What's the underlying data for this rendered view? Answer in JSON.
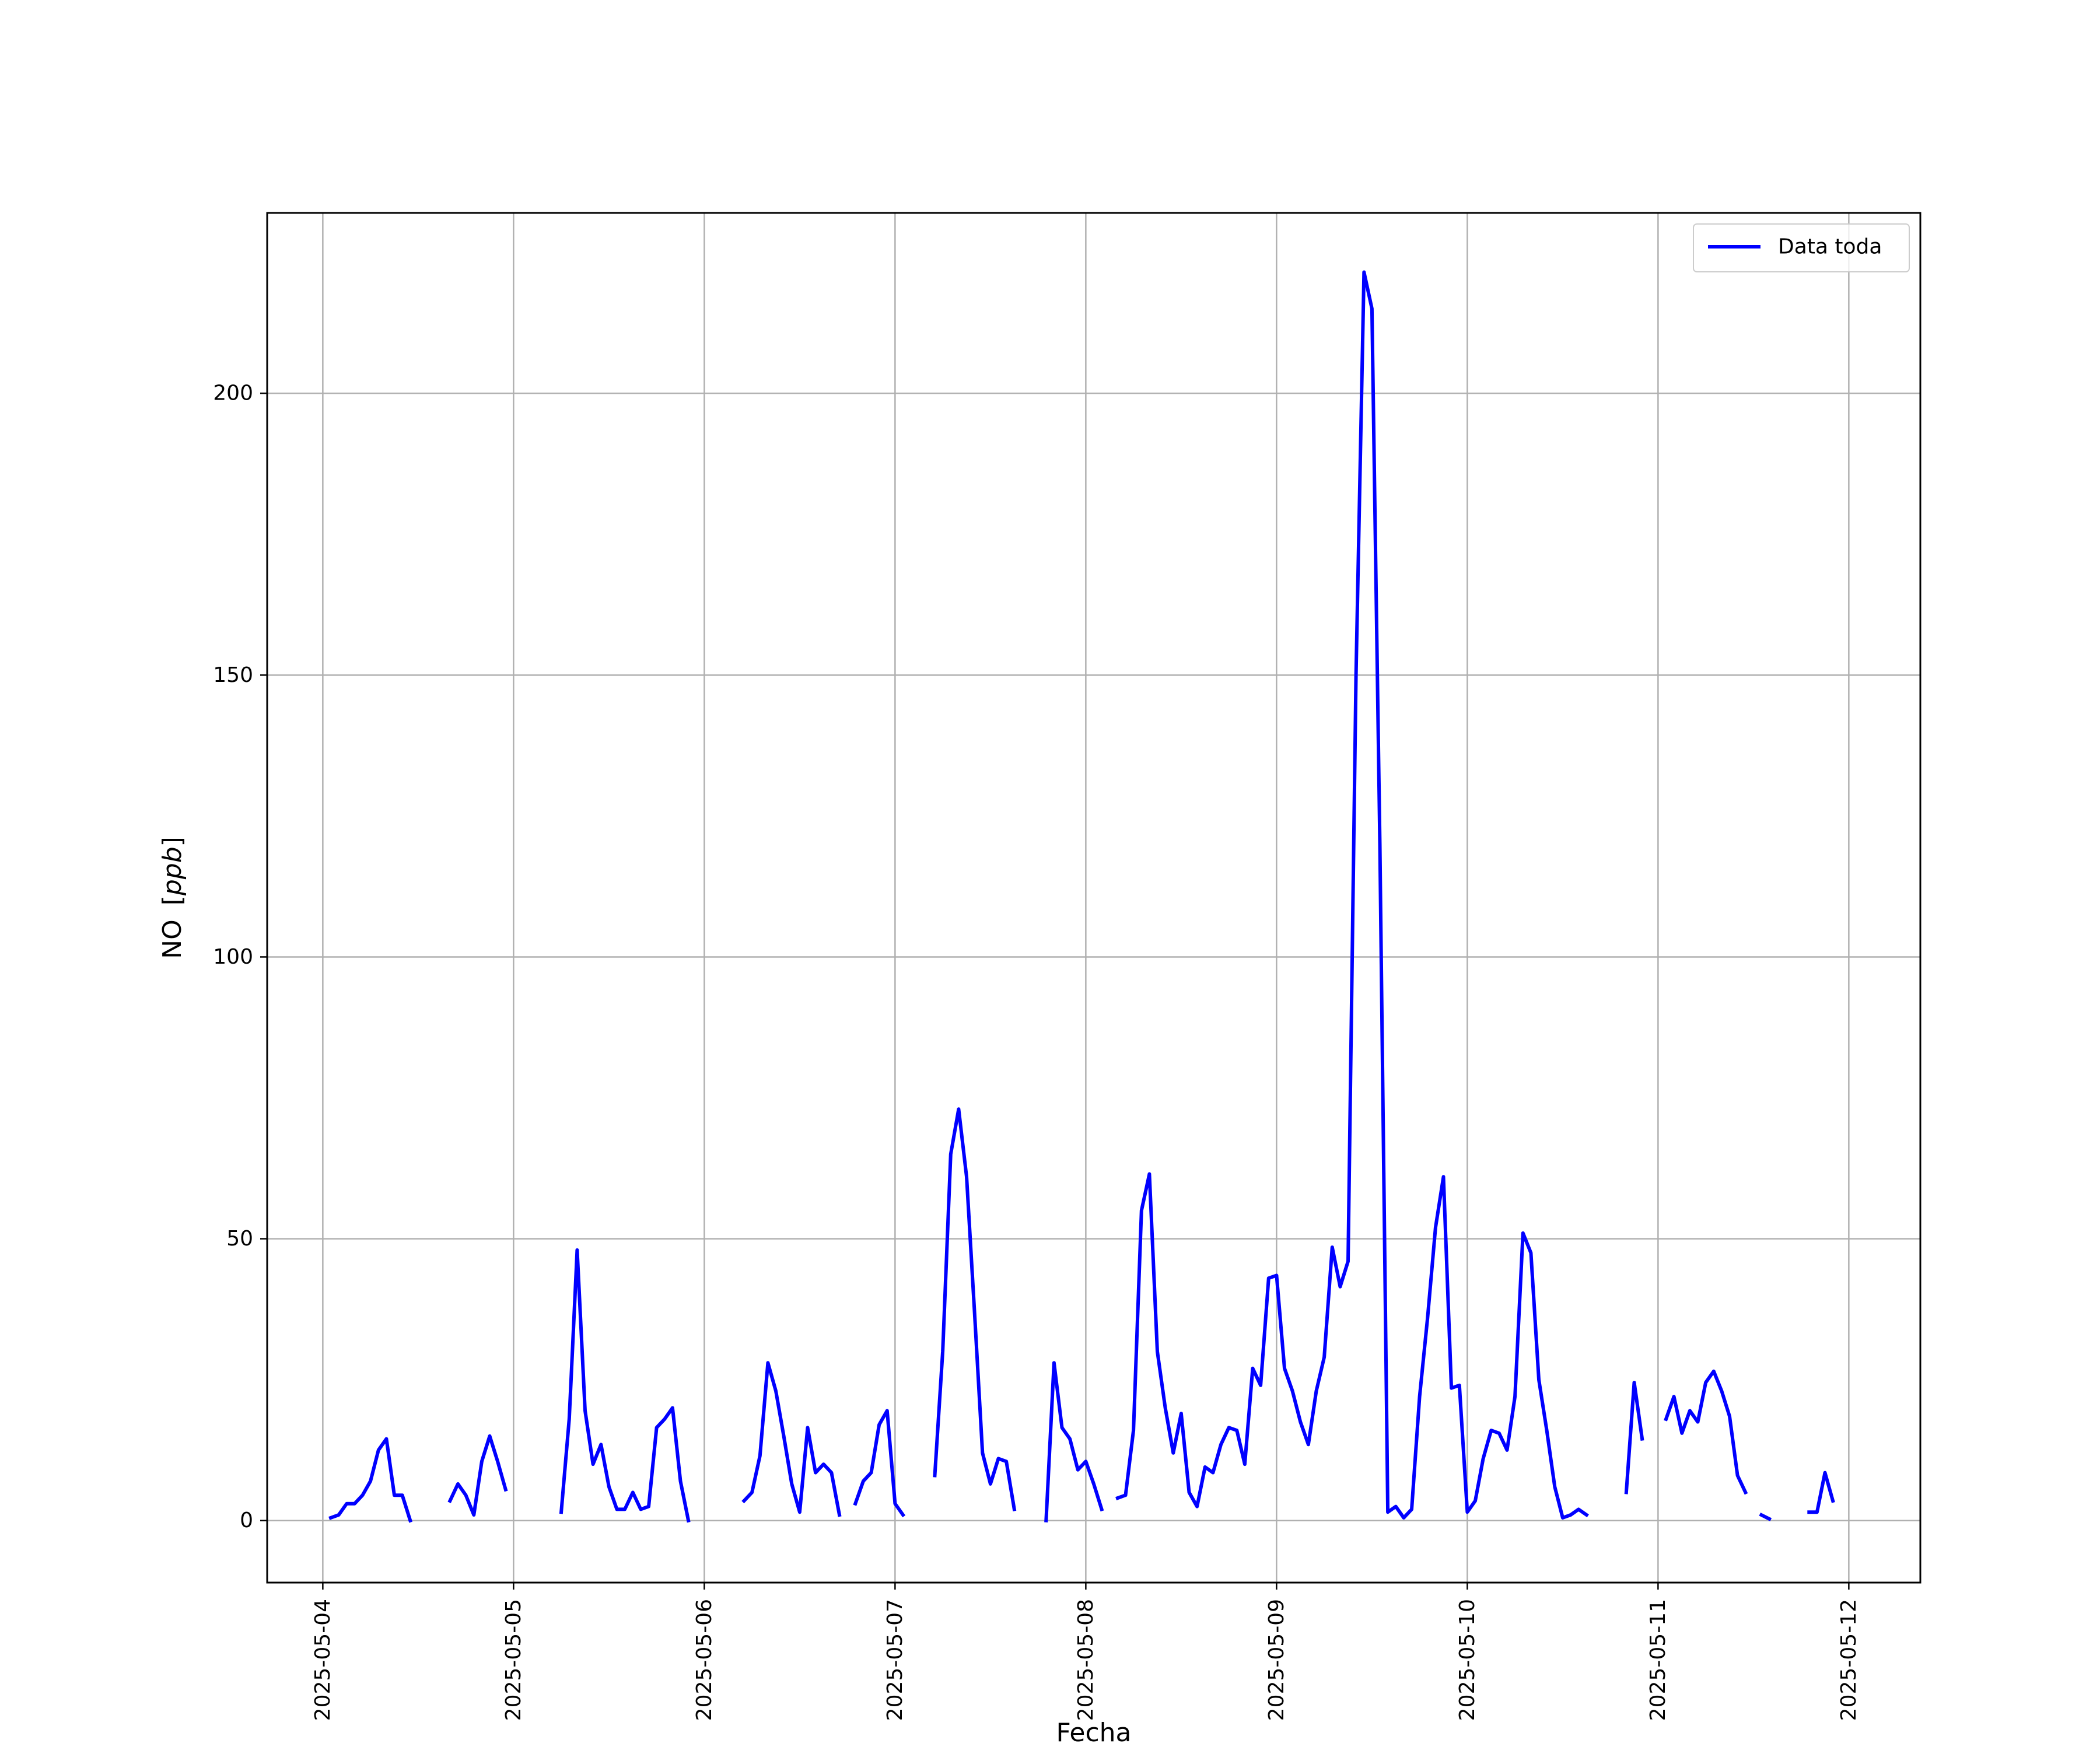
{
  "chart_data": {
    "type": "line",
    "xlabel": "Fecha",
    "ylabel": "NO [ppb]",
    "ylabel_parts": {
      "name": "NO",
      "unit": "ppb"
    },
    "legend_placement": "top-right",
    "grid": true,
    "x_axis_type": "datetime",
    "xlim": [
      "2025-05-03T17:00",
      "2025-05-12T09:00"
    ],
    "ylim": [
      -11,
      232
    ],
    "x_ticks": [
      "2025-05-04",
      "2025-05-05",
      "2025-05-06",
      "2025-05-07",
      "2025-05-08",
      "2025-05-09",
      "2025-05-10",
      "2025-05-11",
      "2025-05-12"
    ],
    "y_ticks": [
      0,
      50,
      100,
      150,
      200
    ],
    "series": [
      {
        "name": "Data toda",
        "color": "#0000ff",
        "segments": [
          [
            [
              "2025-05-04T01:00",
              0.5
            ],
            [
              "2025-05-04T02:00",
              1
            ],
            [
              "2025-05-04T03:00",
              3
            ],
            [
              "2025-05-04T04:00",
              3
            ],
            [
              "2025-05-04T05:00",
              4.5
            ],
            [
              "2025-05-04T06:00",
              7
            ],
            [
              "2025-05-04T07:00",
              12.5
            ],
            [
              "2025-05-04T08:00",
              14.5
            ],
            [
              "2025-05-04T09:00",
              4.5
            ],
            [
              "2025-05-04T10:00",
              4.5
            ],
            [
              "2025-05-04T11:00",
              0
            ]
          ],
          [
            [
              "2025-05-04T16:00",
              3.5
            ],
            [
              "2025-05-04T17:00",
              6.5
            ],
            [
              "2025-05-04T18:00",
              4.5
            ],
            [
              "2025-05-04T19:00",
              1
            ],
            [
              "2025-05-04T20:00",
              10.5
            ],
            [
              "2025-05-04T21:00",
              15
            ],
            [
              "2025-05-04T22:00",
              10.5
            ],
            [
              "2025-05-04T23:00",
              5.5
            ]
          ],
          [
            [
              "2025-05-05T06:00",
              1.5
            ],
            [
              "2025-05-05T07:00",
              18
            ],
            [
              "2025-05-05T08:00",
              48
            ],
            [
              "2025-05-05T09:00",
              19.5
            ],
            [
              "2025-05-05T10:00",
              10
            ],
            [
              "2025-05-05T11:00",
              13.5
            ],
            [
              "2025-05-05T12:00",
              6
            ],
            [
              "2025-05-05T13:00",
              2
            ],
            [
              "2025-05-05T14:00",
              2
            ],
            [
              "2025-05-05T15:00",
              5
            ],
            [
              "2025-05-05T16:00",
              2
            ],
            [
              "2025-05-05T17:00",
              2.5
            ],
            [
              "2025-05-05T18:00",
              16.5
            ],
            [
              "2025-05-05T19:00",
              18
            ],
            [
              "2025-05-05T20:00",
              20
            ],
            [
              "2025-05-05T21:00",
              7
            ],
            [
              "2025-05-05T22:00",
              0
            ]
          ],
          [
            [
              "2025-05-06T05:00",
              3.5
            ],
            [
              "2025-05-06T06:00",
              5
            ],
            [
              "2025-05-06T07:00",
              11.5
            ],
            [
              "2025-05-06T08:00",
              28
            ],
            [
              "2025-05-06T09:00",
              23
            ],
            [
              "2025-05-06T10:00",
              15
            ],
            [
              "2025-05-06T11:00",
              6.5
            ],
            [
              "2025-05-06T12:00",
              1.5
            ],
            [
              "2025-05-06T13:00",
              16.5
            ],
            [
              "2025-05-06T14:00",
              8.5
            ],
            [
              "2025-05-06T15:00",
              10
            ],
            [
              "2025-05-06T16:00",
              8.5
            ],
            [
              "2025-05-06T17:00",
              1
            ]
          ],
          [
            [
              "2025-05-06T19:00",
              3
            ],
            [
              "2025-05-06T20:00",
              7
            ],
            [
              "2025-05-06T21:00",
              8.5
            ],
            [
              "2025-05-06T22:00",
              17
            ],
            [
              "2025-05-06T23:00",
              19.5
            ],
            [
              "2025-05-07T00:00",
              3
            ],
            [
              "2025-05-07T01:00",
              1
            ]
          ],
          [
            [
              "2025-05-07T05:00",
              8
            ],
            [
              "2025-05-07T06:00",
              30
            ],
            [
              "2025-05-07T07:00",
              65
            ],
            [
              "2025-05-07T08:00",
              73
            ],
            [
              "2025-05-07T09:00",
              61
            ],
            [
              "2025-05-07T10:00",
              37
            ],
            [
              "2025-05-07T11:00",
              12
            ],
            [
              "2025-05-07T12:00",
              6.5
            ],
            [
              "2025-05-07T13:00",
              11
            ],
            [
              "2025-05-07T14:00",
              10.5
            ],
            [
              "2025-05-07T15:00",
              2
            ]
          ],
          [
            [
              "2025-05-07T19:00",
              0
            ],
            [
              "2025-05-07T20:00",
              28
            ],
            [
              "2025-05-07T21:00",
              16.5
            ],
            [
              "2025-05-07T22:00",
              14.5
            ],
            [
              "2025-05-07T23:00",
              9
            ],
            [
              "2025-05-08T00:00",
              10.5
            ],
            [
              "2025-05-08T01:00",
              6.5
            ],
            [
              "2025-05-08T02:00",
              2
            ]
          ],
          [
            [
              "2025-05-08T04:00",
              4
            ],
            [
              "2025-05-08T05:00",
              4.5
            ],
            [
              "2025-05-08T06:00",
              16
            ],
            [
              "2025-05-08T07:00",
              55
            ],
            [
              "2025-05-08T08:00",
              61.5
            ],
            [
              "2025-05-08T09:00",
              30
            ],
            [
              "2025-05-08T10:00",
              20
            ],
            [
              "2025-05-08T11:00",
              12
            ],
            [
              "2025-05-08T12:00",
              19
            ],
            [
              "2025-05-08T13:00",
              5
            ],
            [
              "2025-05-08T14:00",
              2.5
            ],
            [
              "2025-05-08T15:00",
              9.5
            ],
            [
              "2025-05-08T16:00",
              8.5
            ],
            [
              "2025-05-08T17:00",
              13.5
            ],
            [
              "2025-05-08T18:00",
              16.5
            ],
            [
              "2025-05-08T19:00",
              16
            ],
            [
              "2025-05-08T20:00",
              10
            ],
            [
              "2025-05-08T21:00",
              27
            ],
            [
              "2025-05-08T22:00",
              24
            ],
            [
              "2025-05-08T23:00",
              43
            ],
            [
              "2025-05-09T00:00",
              43.5
            ],
            [
              "2025-05-09T01:00",
              27
            ],
            [
              "2025-05-09T02:00",
              23
            ],
            [
              "2025-05-09T03:00",
              17.5
            ],
            [
              "2025-05-09T04:00",
              13.5
            ],
            [
              "2025-05-09T05:00",
              23
            ],
            [
              "2025-05-09T06:00",
              29
            ],
            [
              "2025-05-09T07:00",
              48.5
            ],
            [
              "2025-05-09T08:00",
              41.5
            ],
            [
              "2025-05-09T09:00",
              46
            ],
            [
              "2025-05-09T10:00",
              150
            ],
            [
              "2025-05-09T11:00",
              221.5
            ],
            [
              "2025-05-09T12:00",
              215
            ],
            [
              "2025-05-09T13:00",
              120
            ],
            [
              "2025-05-09T14:00",
              1.5
            ],
            [
              "2025-05-09T15:00",
              2.5
            ],
            [
              "2025-05-09T16:00",
              0.5
            ],
            [
              "2025-05-09T17:00",
              2
            ],
            [
              "2025-05-09T18:00",
              22
            ],
            [
              "2025-05-09T19:00",
              36
            ],
            [
              "2025-05-09T20:00",
              52
            ],
            [
              "2025-05-09T21:00",
              61
            ],
            [
              "2025-05-09T22:00",
              23.5
            ],
            [
              "2025-05-09T23:00",
              24
            ],
            [
              "2025-05-10T00:00",
              1.5
            ],
            [
              "2025-05-10T01:00",
              3.5
            ],
            [
              "2025-05-10T02:00",
              11
            ],
            [
              "2025-05-10T03:00",
              16
            ],
            [
              "2025-05-10T04:00",
              15.5
            ],
            [
              "2025-05-10T05:00",
              12.5
            ],
            [
              "2025-05-10T06:00",
              22
            ],
            [
              "2025-05-10T07:00",
              51
            ],
            [
              "2025-05-10T08:00",
              47.5
            ],
            [
              "2025-05-10T09:00",
              25
            ],
            [
              "2025-05-10T10:00",
              16
            ],
            [
              "2025-05-10T11:00",
              6
            ],
            [
              "2025-05-10T12:00",
              0.5
            ],
            [
              "2025-05-10T13:00",
              1
            ],
            [
              "2025-05-10T14:00",
              2
            ],
            [
              "2025-05-10T15:00",
              1
            ]
          ],
          [
            [
              "2025-05-10T20:00",
              5
            ],
            [
              "2025-05-10T21:00",
              24.5
            ],
            [
              "2025-05-10T22:00",
              14.5
            ]
          ],
          [
            [
              "2025-05-11T01:00",
              18
            ],
            [
              "2025-05-11T02:00",
              22
            ],
            [
              "2025-05-11T03:00",
              15.5
            ],
            [
              "2025-05-11T04:00",
              19.5
            ],
            [
              "2025-05-11T05:00",
              17.5
            ],
            [
              "2025-05-11T06:00",
              24.5
            ],
            [
              "2025-05-11T07:00",
              26.5
            ],
            [
              "2025-05-11T08:00",
              23
            ],
            [
              "2025-05-11T09:00",
              18.5
            ],
            [
              "2025-05-11T10:00",
              8
            ],
            [
              "2025-05-11T11:00",
              5
            ]
          ],
          [
            [
              "2025-05-11T13:00",
              1
            ],
            [
              "2025-05-11T14:00",
              0.3
            ]
          ],
          [
            [
              "2025-05-11T19:00",
              1.5
            ],
            [
              "2025-05-11T20:00",
              1.5
            ],
            [
              "2025-05-11T21:00",
              8.5
            ],
            [
              "2025-05-11T22:00",
              3.5
            ]
          ]
        ]
      }
    ]
  }
}
